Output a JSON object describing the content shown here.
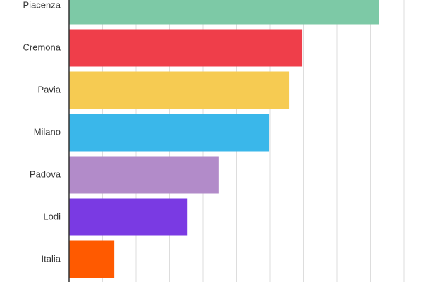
{
  "chart_data": {
    "type": "hbar",
    "categories": [
      "Piacenza",
      "Cremona",
      "Pavia",
      "Milano",
      "Padova",
      "Lodi",
      "Italia"
    ],
    "values": [
      9.26,
      6.97,
      6.57,
      5.98,
      4.46,
      3.52,
      1.35
    ],
    "colors": [
      "#7dc9a6",
      "#ef3e4a",
      "#f6cb52",
      "#3ab7ea",
      "#b28bc9",
      "#7a3ae3",
      "#ff5a00"
    ],
    "xlim": [
      0,
      10.5
    ],
    "xticks": [
      0,
      1,
      2,
      3,
      4,
      5,
      6,
      7,
      8,
      9,
      10
    ],
    "grid": true
  }
}
